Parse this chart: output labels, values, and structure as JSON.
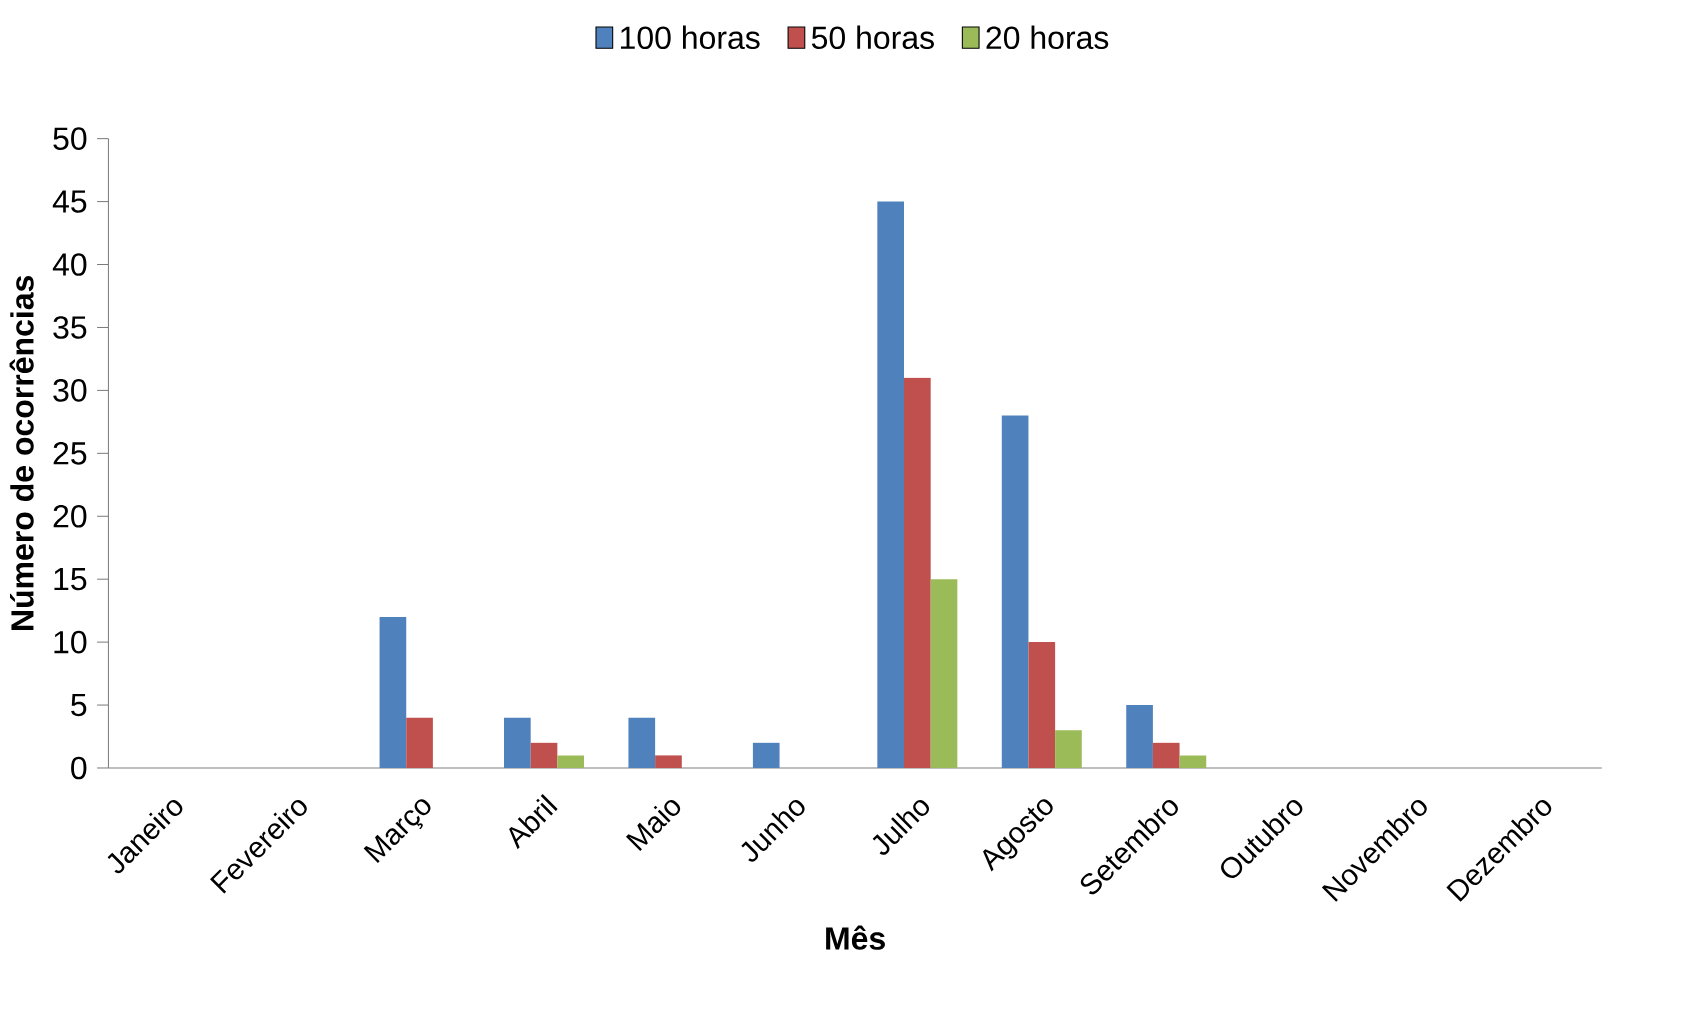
{
  "chart_data": {
    "type": "bar",
    "xlabel": "Mês",
    "ylabel": "Número de ocorrências",
    "categories": [
      "Janeiro",
      "Fevereiro",
      "Março",
      "Abril",
      "Maio",
      "Junho",
      "Julho",
      "Agosto",
      "Setembro",
      "Outubro",
      "Novembro",
      "Dezembro"
    ],
    "series": [
      {
        "name": "100 horas",
        "color": "#4f81bd",
        "values": [
          0,
          0,
          12,
          4,
          4,
          2,
          45,
          28,
          5,
          0,
          0,
          0
        ]
      },
      {
        "name": "50 horas",
        "color": "#c0504d",
        "values": [
          0,
          0,
          4,
          2,
          1,
          0,
          31,
          10,
          2,
          0,
          0,
          0
        ]
      },
      {
        "name": "20 horas",
        "color": "#9bbb59",
        "values": [
          0,
          0,
          0,
          1,
          0,
          0,
          15,
          3,
          1,
          0,
          0,
          0
        ]
      }
    ],
    "ylim": [
      0,
      50
    ],
    "yticks": [
      0,
      5,
      10,
      15,
      20,
      25,
      30,
      35,
      40,
      45,
      50
    ],
    "legend": "top"
  }
}
